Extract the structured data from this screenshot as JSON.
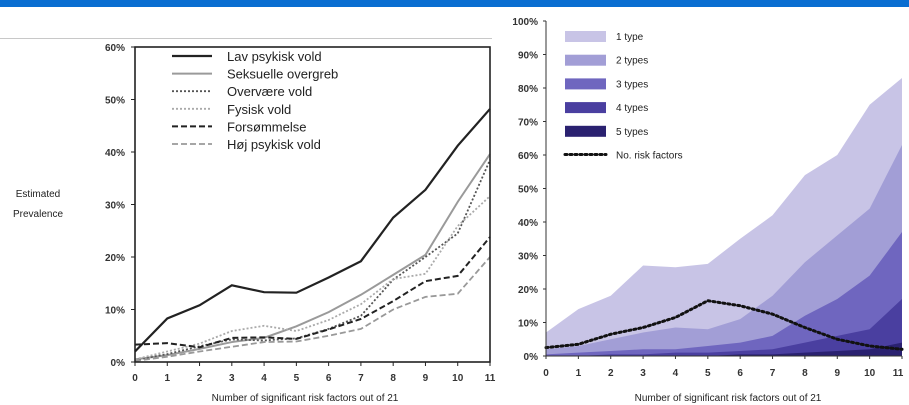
{
  "theme": {
    "accent": "#0a6ed1"
  },
  "chart_data": [
    {
      "type": "line",
      "title": "",
      "xlabel": "Number of significant risk factors out of 21",
      "ylabel": "Estimated Prevalence",
      "ylabel_lines": [
        "Estimated",
        "Prevalence"
      ],
      "x": [
        0,
        1,
        2,
        3,
        4,
        5,
        6,
        7,
        8,
        9,
        10,
        11
      ],
      "x_ticks": [
        "0",
        "1",
        "2",
        "3",
        "4",
        "5",
        "6",
        "7",
        "8",
        "9",
        "10",
        "11"
      ],
      "y_ticks": [
        "0%",
        "10%",
        "20%",
        "30%",
        "40%",
        "50%",
        "60%"
      ],
      "ylim": [
        0,
        60
      ],
      "legend_position": "top-center",
      "series": [
        {
          "name": "Lav psykisk vold",
          "color": "#222222",
          "dash": "solid",
          "width": 2.2,
          "values": [
            2,
            8.3,
            10.8,
            14.6,
            13.3,
            13.2,
            16.1,
            19.2,
            27.5,
            32.8,
            41.2,
            48.2
          ]
        },
        {
          "name": "Seksuelle overgreb",
          "color": "#9a9a9a",
          "dash": "solid",
          "width": 2,
          "values": [
            0.5,
            1.3,
            2.5,
            3.8,
            4.6,
            6.8,
            9.5,
            12.8,
            16.6,
            20.4,
            30.5,
            39.6
          ]
        },
        {
          "name": "Overvære vold",
          "color": "#555555",
          "dash": "dot",
          "width": 1.8,
          "values": [
            0.4,
            1.5,
            3.0,
            4.3,
            4.1,
            4.5,
            6.3,
            8.8,
            15.7,
            20.0,
            24.5,
            38.5
          ]
        },
        {
          "name": "Fysisk vold",
          "color": "#aaaaaa",
          "dash": "dot",
          "width": 1.8,
          "values": [
            0.5,
            2.0,
            3.5,
            5.9,
            6.9,
            5.9,
            8.0,
            11.0,
            15.8,
            16.8,
            25.9,
            31.6
          ]
        },
        {
          "name": "Forsømmelse",
          "color": "#222222",
          "dash": "dash",
          "width": 2,
          "values": [
            3.3,
            3.6,
            2.8,
            4.6,
            4.7,
            4.4,
            6.2,
            8.2,
            11.6,
            15.4,
            16.4,
            23.8
          ]
        },
        {
          "name": "Høj psykisk vold",
          "color": "#999999",
          "dash": "dash",
          "width": 1.8,
          "values": [
            0.2,
            1.0,
            2.0,
            2.9,
            3.8,
            3.9,
            5.0,
            6.3,
            10.0,
            12.4,
            13.0,
            20.0
          ]
        }
      ]
    },
    {
      "type": "area",
      "title": "",
      "xlabel": "Number of significant risk factors out of 21",
      "x": [
        0,
        1,
        2,
        3,
        4,
        5,
        6,
        7,
        8,
        9,
        10,
        11
      ],
      "x_ticks": [
        "0",
        "1",
        "2",
        "3",
        "4",
        "5",
        "6",
        "7",
        "8",
        "9",
        "10",
        "11"
      ],
      "y_ticks": [
        "0%",
        "10%",
        "20%",
        "30%",
        "40%",
        "50%",
        "60%",
        "70%",
        "80%",
        "90%",
        "100%"
      ],
      "ylim": [
        0,
        100
      ],
      "legend_position": "top-left",
      "series": [
        {
          "name": "1 type",
          "color": "#c8c4e6",
          "values": [
            7,
            14,
            18,
            27,
            26.5,
            27.5,
            35,
            42,
            54,
            60,
            75,
            83
          ]
        },
        {
          "name": "2 types",
          "color": "#a29ed6",
          "values": [
            2,
            3,
            5,
            7,
            8.5,
            8,
            11,
            18,
            28,
            36,
            44,
            63
          ]
        },
        {
          "name": "3 types",
          "color": "#6f66bf",
          "values": [
            0.5,
            1,
            1.5,
            2,
            2,
            3,
            4,
            6,
            12,
            17,
            24,
            37
          ]
        },
        {
          "name": "4 types",
          "color": "#4a3fa0",
          "values": [
            0,
            0,
            0.5,
            0.5,
            1,
            1,
            1.5,
            2,
            4,
            6,
            8,
            17
          ]
        },
        {
          "name": "5 types",
          "color": "#2a2170",
          "values": [
            0,
            0,
            0,
            0,
            0,
            0,
            0.5,
            0.5,
            1,
            1.5,
            2,
            4
          ]
        },
        {
          "name": "No. risk factors",
          "color": "#111111",
          "kind": "line",
          "dash": "dot",
          "values": [
            2.5,
            3.5,
            6.5,
            8.5,
            11.5,
            16.5,
            15,
            12.5,
            8.5,
            5,
            3,
            2
          ]
        }
      ]
    }
  ]
}
